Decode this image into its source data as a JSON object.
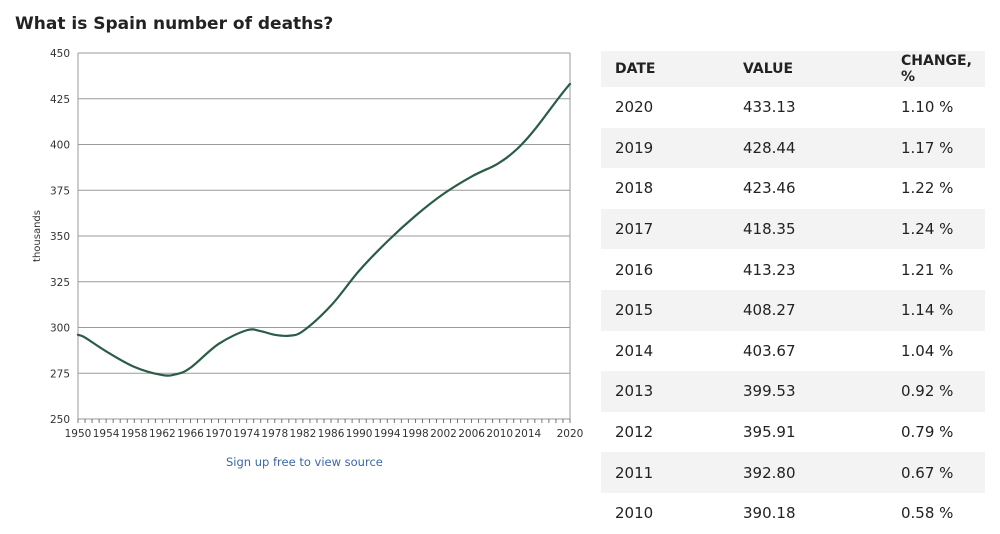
{
  "title": "What is Spain number of deaths?",
  "source_link": "Sign up free to view source",
  "table": {
    "headers": [
      "DATE",
      "VALUE",
      "CHANGE, %"
    ],
    "rows": [
      [
        "2020",
        "433.13",
        "1.10 %"
      ],
      [
        "2019",
        "428.44",
        "1.17 %"
      ],
      [
        "2018",
        "423.46",
        "1.22 %"
      ],
      [
        "2017",
        "418.35",
        "1.24 %"
      ],
      [
        "2016",
        "413.23",
        "1.21 %"
      ],
      [
        "2015",
        "408.27",
        "1.14 %"
      ],
      [
        "2014",
        "403.67",
        "1.04 %"
      ],
      [
        "2013",
        "399.53",
        "0.92 %"
      ],
      [
        "2012",
        "395.91",
        "0.79 %"
      ],
      [
        "2011",
        "392.80",
        "0.67 %"
      ],
      [
        "2010",
        "390.18",
        "0.58 %"
      ]
    ]
  },
  "chart_data": {
    "type": "line",
    "title": "What is Spain number of deaths?",
    "xlabel": "",
    "ylabel": "thousands",
    "xlim": [
      1950,
      2020
    ],
    "ylim": [
      250,
      450
    ],
    "yticks": [
      250,
      275,
      300,
      325,
      350,
      375,
      400,
      425,
      450
    ],
    "xticks": [
      1950,
      1954,
      1958,
      1962,
      1966,
      1970,
      1974,
      1978,
      1982,
      1986,
      1990,
      1994,
      1998,
      2002,
      2006,
      2010,
      2014,
      2020
    ],
    "color": "#2b5c45",
    "series": [
      {
        "name": "Spain number of deaths",
        "x": [
          1950,
          1951,
          1954,
          1958,
          1962,
          1964,
          1966,
          1970,
          1974,
          1976,
          1978,
          1980,
          1982,
          1986,
          1990,
          1994,
          1998,
          2002,
          2006,
          2009,
          2010,
          2011,
          2012,
          2013,
          2014,
          2015,
          2016,
          2017,
          2018,
          2019,
          2020
        ],
        "y": [
          296,
          294.5,
          287,
          278.5,
          274,
          274.5,
          278,
          291,
          298.5,
          298,
          296,
          295.5,
          298,
          312,
          331,
          347,
          361,
          373,
          382.5,
          388,
          390.18,
          392.8,
          395.91,
          399.53,
          403.67,
          408.27,
          413.23,
          418.35,
          423.46,
          428.44,
          433.13
        ]
      }
    ]
  }
}
